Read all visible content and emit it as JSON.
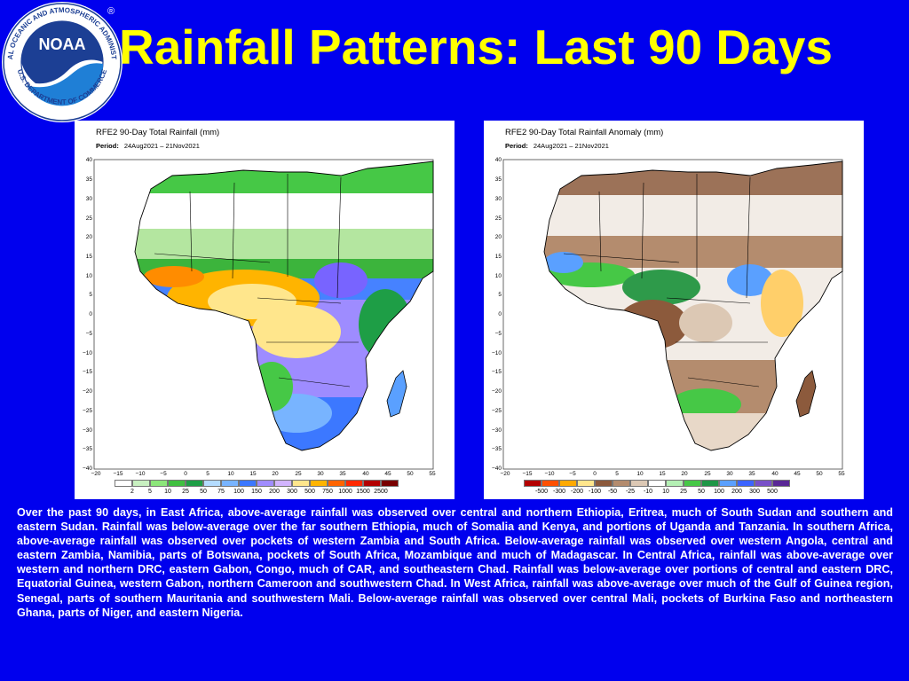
{
  "title": "Rainfall Patterns: Last 90 Days",
  "logo": {
    "text": "NOAA",
    "ring_top": "NATIONAL OCEANIC AND ATMOSPHERIC ADMINISTRATION",
    "ring_bottom": "U.S. DEPARTMENT OF COMMERCE",
    "registered": "®"
  },
  "colors": {
    "background": "#0000ee",
    "title": "#ffff00",
    "body_text": "#ffffff"
  },
  "maps": [
    {
      "title": "RFE2 90-Day Total Rainfall (mm)",
      "period_label": "Period:",
      "period": "24Aug2021 – 21Nov2021",
      "legend_values": [
        "2",
        "5",
        "10",
        "25",
        "50",
        "75",
        "100",
        "150",
        "200",
        "300",
        "500",
        "750",
        "1000",
        "1500",
        "2500"
      ],
      "legend_colors": [
        "#ffffff",
        "#c8f0c0",
        "#8ce67a",
        "#40c040",
        "#1e9e46",
        "#b4dcff",
        "#78b4ff",
        "#3c78ff",
        "#a08cff",
        "#d2b4ff",
        "#ffe68c",
        "#ffb400",
        "#ff6400",
        "#ff2800",
        "#b40000",
        "#780000"
      ]
    },
    {
      "title": "RFE2 90-Day Total Rainfall Anomaly (mm)",
      "period_label": "Period:",
      "period": "24Aug2021 – 21Nov2021",
      "legend_values": [
        "-500",
        "-300",
        "-200",
        "-100",
        "-50",
        "-25",
        "-10",
        "10",
        "25",
        "50",
        "100",
        "200",
        "300",
        "500"
      ],
      "legend_colors": [
        "#b40000",
        "#ff5000",
        "#ffaa00",
        "#ffe68c",
        "#8c5a3c",
        "#b48c6e",
        "#dcc8b4",
        "#ffffff",
        "#b4f0b4",
        "#46c846",
        "#1e9646",
        "#5aa0ff",
        "#3c64ff",
        "#7850c8",
        "#5a2896"
      ]
    }
  ],
  "axis": {
    "lat_ticks": [
      "40",
      "35",
      "30",
      "25",
      "20",
      "15",
      "10",
      "5",
      "0",
      "−5",
      "−10",
      "−15",
      "−20",
      "−25",
      "−30",
      "−35",
      "−40"
    ],
    "lon_ticks": [
      "−20",
      "−15",
      "−10",
      "−5",
      "0",
      "5",
      "10",
      "15",
      "20",
      "25",
      "30",
      "35",
      "40",
      "45",
      "50",
      "55"
    ]
  },
  "description": "Over the past 90 days, in East Africa, above-average rainfall was observed over central and northern Ethiopia, Eritrea, much of South Sudan and southern and eastern Sudan. Rainfall was below-average over the far southern Ethiopia, much of Somalia and Kenya, and portions of Uganda and Tanzania. In southern Africa, above-average rainfall was observed over pockets of western Zambia and South Africa. Below-average rainfall was observed over western Angola, central and eastern Zambia, Namibia, parts of Botswana, pockets of South Africa, Mozambique and much of Madagascar. In Central Africa, rainfall was above-average over western and northern DRC, eastern Gabon, Congo, much of CAR, and southeastern Chad.  Rainfall was below-average over portions of central and eastern DRC, Equatorial Guinea, western Gabon, northern Cameroon and southwestern Chad. In West Africa, rainfall was above-average over much of the Gulf of Guinea region, Senegal, parts of southern Mauritania and southwestern Mali. Below-average rainfall was observed over central Mali, pockets of Burkina Faso and northeastern Ghana, parts of Niger, and eastern Nigeria."
}
